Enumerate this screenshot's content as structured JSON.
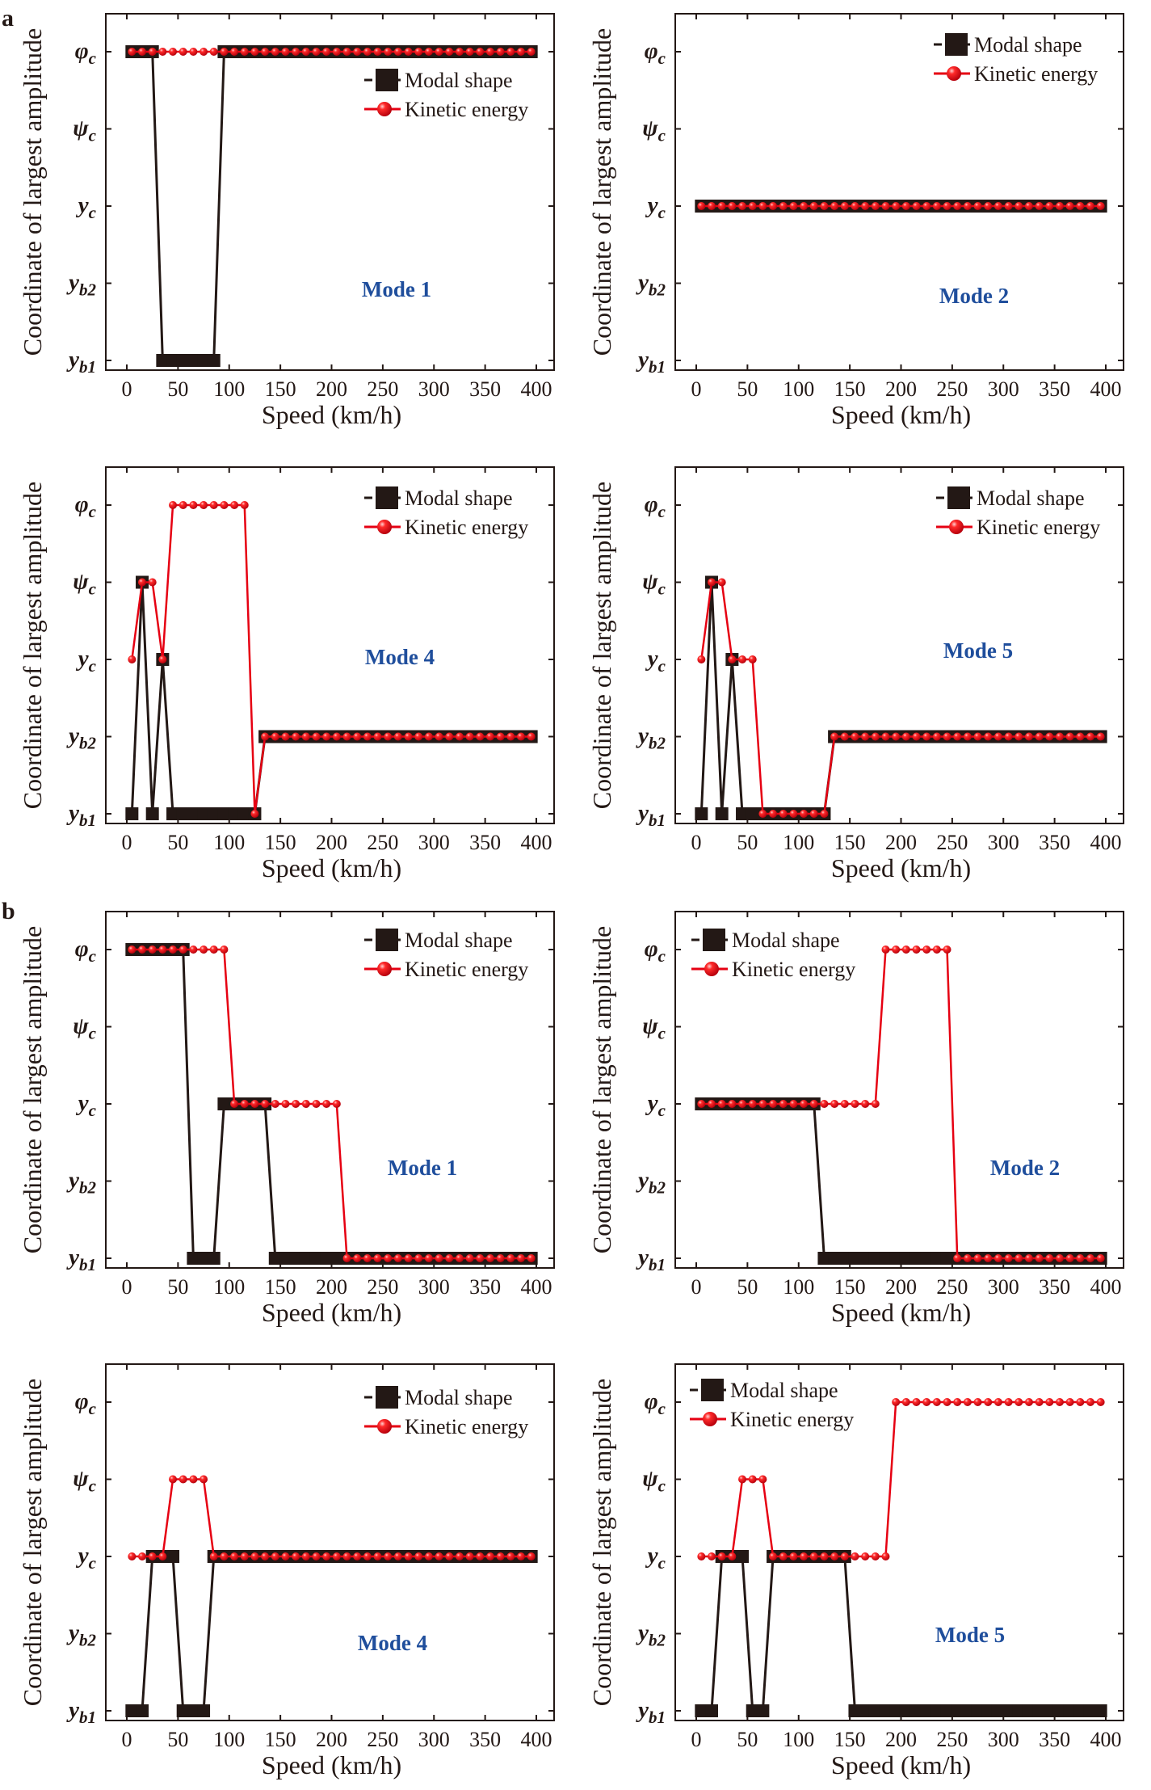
{
  "figure": {
    "panel_letters": [
      "a",
      "b"
    ]
  },
  "chart_data": {
    "type": "line",
    "xlabel": "Speed (km/h)",
    "ylabel": "Coordinate of largest amplitude",
    "xlim": [
      0,
      400
    ],
    "x_ticks": [
      0,
      50,
      100,
      150,
      200,
      250,
      300,
      350,
      400
    ],
    "y_categories": [
      {
        "symbol": "y",
        "sub": "b1"
      },
      {
        "symbol": "y",
        "sub": "b2"
      },
      {
        "symbol": "y",
        "sub": "c"
      },
      {
        "symbol": "ψ",
        "sub": "c"
      },
      {
        "symbol": "φ",
        "sub": "c"
      }
    ],
    "x": [
      5,
      15,
      25,
      35,
      45,
      55,
      65,
      75,
      85,
      95,
      105,
      115,
      125,
      135,
      145,
      155,
      165,
      175,
      185,
      195,
      205,
      215,
      225,
      235,
      245,
      255,
      265,
      275,
      285,
      295,
      305,
      315,
      325,
      335,
      345,
      355,
      365,
      375,
      385,
      395
    ],
    "legend": {
      "modal_shape": "Modal shape",
      "kinetic_energy": "Kinetic energy"
    },
    "colors": {
      "modal_shape": "#231815",
      "kinetic_energy": "#e60012",
      "mode_label": "#1f4e9c"
    },
    "grid": false,
    "panels": [
      {
        "group": "a",
        "mode": "Mode 1",
        "legend_placement": "top-right",
        "modal_shape": [
          4,
          4,
          4,
          0,
          0,
          0,
          0,
          0,
          0,
          4,
          4,
          4,
          4,
          4,
          4,
          4,
          4,
          4,
          4,
          4,
          4,
          4,
          4,
          4,
          4,
          4,
          4,
          4,
          4,
          4,
          4,
          4,
          4,
          4,
          4,
          4,
          4,
          4,
          4,
          4
        ],
        "kinetic_energy": [
          4,
          4,
          4,
          4,
          4,
          4,
          4,
          4,
          4,
          4,
          4,
          4,
          4,
          4,
          4,
          4,
          4,
          4,
          4,
          4,
          4,
          4,
          4,
          4,
          4,
          4,
          4,
          4,
          4,
          4,
          4,
          4,
          4,
          4,
          4,
          4,
          4,
          4,
          4,
          4
        ]
      },
      {
        "group": "a",
        "mode": "Mode 2",
        "legend_placement": "top-right",
        "modal_shape": [
          2,
          2,
          2,
          2,
          2,
          2,
          2,
          2,
          2,
          2,
          2,
          2,
          2,
          2,
          2,
          2,
          2,
          2,
          2,
          2,
          2,
          2,
          2,
          2,
          2,
          2,
          2,
          2,
          2,
          2,
          2,
          2,
          2,
          2,
          2,
          2,
          2,
          2,
          2,
          2
        ],
        "kinetic_energy": [
          2,
          2,
          2,
          2,
          2,
          2,
          2,
          2,
          2,
          2,
          2,
          2,
          2,
          2,
          2,
          2,
          2,
          2,
          2,
          2,
          2,
          2,
          2,
          2,
          2,
          2,
          2,
          2,
          2,
          2,
          2,
          2,
          2,
          2,
          2,
          2,
          2,
          2,
          2,
          2
        ]
      },
      {
        "group": "a",
        "mode": "Mode 4",
        "legend_placement": "top-right",
        "modal_shape": [
          0,
          3,
          0,
          2,
          0,
          0,
          0,
          0,
          0,
          0,
          0,
          0,
          0,
          1,
          1,
          1,
          1,
          1,
          1,
          1,
          1,
          1,
          1,
          1,
          1,
          1,
          1,
          1,
          1,
          1,
          1,
          1,
          1,
          1,
          1,
          1,
          1,
          1,
          1,
          1
        ],
        "kinetic_energy": [
          2,
          3,
          3,
          2,
          4,
          4,
          4,
          4,
          4,
          4,
          4,
          4,
          0,
          1,
          1,
          1,
          1,
          1,
          1,
          1,
          1,
          1,
          1,
          1,
          1,
          1,
          1,
          1,
          1,
          1,
          1,
          1,
          1,
          1,
          1,
          1,
          1,
          1,
          1,
          1
        ]
      },
      {
        "group": "a",
        "mode": "Mode 5",
        "legend_placement": "top-right",
        "modal_shape": [
          0,
          3,
          0,
          2,
          0,
          0,
          0,
          0,
          0,
          0,
          0,
          0,
          0,
          1,
          1,
          1,
          1,
          1,
          1,
          1,
          1,
          1,
          1,
          1,
          1,
          1,
          1,
          1,
          1,
          1,
          1,
          1,
          1,
          1,
          1,
          1,
          1,
          1,
          1,
          1
        ],
        "kinetic_energy": [
          2,
          3,
          3,
          2,
          2,
          2,
          0,
          0,
          0,
          0,
          0,
          0,
          0,
          1,
          1,
          1,
          1,
          1,
          1,
          1,
          1,
          1,
          1,
          1,
          1,
          1,
          1,
          1,
          1,
          1,
          1,
          1,
          1,
          1,
          1,
          1,
          1,
          1,
          1,
          1
        ]
      },
      {
        "group": "b",
        "mode": "Mode 1",
        "legend_placement": "top-right",
        "modal_shape": [
          4,
          4,
          4,
          4,
          4,
          4,
          0,
          0,
          0,
          2,
          2,
          2,
          2,
          2,
          0,
          0,
          0,
          0,
          0,
          0,
          0,
          0,
          0,
          0,
          0,
          0,
          0,
          0,
          0,
          0,
          0,
          0,
          0,
          0,
          0,
          0,
          0,
          0,
          0,
          0
        ],
        "kinetic_energy": [
          4,
          4,
          4,
          4,
          4,
          4,
          4,
          4,
          4,
          4,
          2,
          2,
          2,
          2,
          2,
          2,
          2,
          2,
          2,
          2,
          2,
          0,
          0,
          0,
          0,
          0,
          0,
          0,
          0,
          0,
          0,
          0,
          0,
          0,
          0,
          0,
          0,
          0,
          0,
          0
        ]
      },
      {
        "group": "b",
        "mode": "Mode 2",
        "legend_placement": "top-left",
        "modal_shape": [
          2,
          2,
          2,
          2,
          2,
          2,
          2,
          2,
          2,
          2,
          2,
          2,
          0,
          0,
          0,
          0,
          0,
          0,
          0,
          0,
          0,
          0,
          0,
          0,
          0,
          0,
          0,
          0,
          0,
          0,
          0,
          0,
          0,
          0,
          0,
          0,
          0,
          0,
          0,
          0
        ],
        "kinetic_energy": [
          2,
          2,
          2,
          2,
          2,
          2,
          2,
          2,
          2,
          2,
          2,
          2,
          2,
          2,
          2,
          2,
          2,
          2,
          4,
          4,
          4,
          4,
          4,
          4,
          4,
          0,
          0,
          0,
          0,
          0,
          0,
          0,
          0,
          0,
          0,
          0,
          0,
          0,
          0,
          0
        ]
      },
      {
        "group": "b",
        "mode": "Mode 4",
        "legend_placement": "top-right",
        "modal_shape": [
          0,
          0,
          2,
          2,
          2,
          0,
          0,
          0,
          2,
          2,
          2,
          2,
          2,
          2,
          2,
          2,
          2,
          2,
          2,
          2,
          2,
          2,
          2,
          2,
          2,
          2,
          2,
          2,
          2,
          2,
          2,
          2,
          2,
          2,
          2,
          2,
          2,
          2,
          2,
          2
        ],
        "kinetic_energy": [
          2,
          2,
          2,
          2,
          3,
          3,
          3,
          3,
          2,
          2,
          2,
          2,
          2,
          2,
          2,
          2,
          2,
          2,
          2,
          2,
          2,
          2,
          2,
          2,
          2,
          2,
          2,
          2,
          2,
          2,
          2,
          2,
          2,
          2,
          2,
          2,
          2,
          2,
          2,
          2
        ]
      },
      {
        "group": "b",
        "mode": "Mode 5",
        "legend_placement": "top-left",
        "modal_shape": [
          0,
          0,
          2,
          2,
          2,
          0,
          0,
          2,
          2,
          2,
          2,
          2,
          2,
          2,
          2,
          0,
          0,
          0,
          0,
          0,
          0,
          0,
          0,
          0,
          0,
          0,
          0,
          0,
          0,
          0,
          0,
          0,
          0,
          0,
          0,
          0,
          0,
          0,
          0,
          0
        ],
        "kinetic_energy": [
          2,
          2,
          2,
          2,
          3,
          3,
          3,
          2,
          2,
          2,
          2,
          2,
          2,
          2,
          2,
          2,
          2,
          2,
          2,
          4,
          4,
          4,
          4,
          4,
          4,
          4,
          4,
          4,
          4,
          4,
          4,
          4,
          4,
          4,
          4,
          4,
          4,
          4,
          4,
          4
        ]
      }
    ]
  }
}
